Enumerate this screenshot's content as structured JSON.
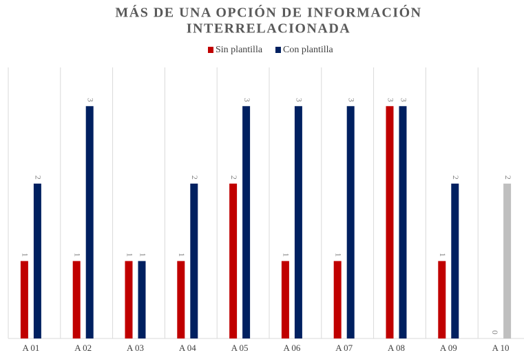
{
  "chart_data": {
    "type": "bar",
    "title": [
      "MÁS DE UNA OPCIÓN DE INFORMACIÓN",
      "INTERRELACIONADA"
    ],
    "categories": [
      "A 01",
      "A 02",
      "A 03",
      "A 04",
      "A 05",
      "A 06",
      "A 07",
      "A 08",
      "A 09",
      "A 10"
    ],
    "series": [
      {
        "name": "Sin plantilla",
        "color": "#c00000",
        "values": [
          1,
          1,
          1,
          1,
          2,
          1,
          1,
          3,
          1,
          0
        ]
      },
      {
        "name": "Con plantilla",
        "color": "#002060",
        "values": [
          2,
          3,
          1,
          2,
          3,
          3,
          3,
          3,
          2,
          2
        ],
        "colors": [
          "#002060",
          "#002060",
          "#002060",
          "#002060",
          "#002060",
          "#002060",
          "#002060",
          "#002060",
          "#002060",
          "#bfbfbf"
        ]
      }
    ],
    "ylim": [
      0,
      3.5
    ],
    "legend": "top",
    "grid": true
  }
}
